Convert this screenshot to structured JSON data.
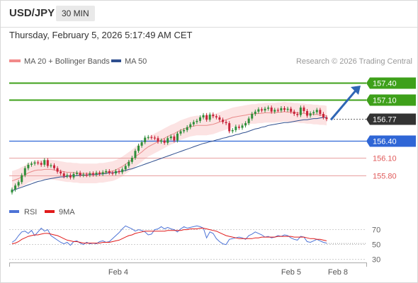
{
  "header": {
    "symbol": "USD/JPY",
    "timeframe": "30 MIN"
  },
  "timestamp": "Thursday, February 5, 2026 5:17:49 AM CET",
  "legend": {
    "ma20": "MA 20 + Bollinger Bands",
    "ma50": "MA 50",
    "credit": "Research © 2026 Trading Central"
  },
  "colors": {
    "support_line": "#2f66d6",
    "target_line": "#3ea01a",
    "pivot_line": "#e8a0a0",
    "price_box": "#333333",
    "arrow": "#2f66b5",
    "ma20": "#e98a8a",
    "ma50": "#2f4f8f",
    "rsi": "#4d73d6",
    "rsi_ma": "#e11b1b",
    "candle_up": "#2f8f3a",
    "candle_down": "#c8243a",
    "band_fill": "#fbd9d9"
  },
  "chart_data": [
    {
      "type": "candlestick",
      "title": "USD/JPY",
      "x_labels": [
        "Feb 4",
        "Feb 5",
        "Feb 8"
      ],
      "ylim": [
        155.39,
        157.62
      ],
      "levels": [
        {
          "value": 157.4,
          "label": "157.40",
          "kind": "target"
        },
        {
          "value": 157.1,
          "label": "157.10",
          "kind": "target"
        },
        {
          "value": 156.77,
          "label": "156.77",
          "kind": "last"
        },
        {
          "value": 156.4,
          "label": "156.40",
          "kind": "support"
        },
        {
          "value": 156.1,
          "label": "156.10",
          "kind": "pivot"
        },
        {
          "value": 155.8,
          "label": "155.80",
          "kind": "pivot"
        }
      ],
      "series": [
        {
          "name": "MA 20 + Bollinger Bands"
        },
        {
          "name": "MA 50"
        }
      ],
      "closes": [
        155.55,
        155.62,
        155.68,
        155.8,
        155.92,
        155.98,
        156.0,
        156.02,
        156.01,
        155.98,
        156.06,
        155.96,
        155.97,
        155.92,
        155.86,
        155.83,
        155.78,
        155.8,
        155.76,
        155.82,
        155.84,
        155.8,
        155.81,
        155.8,
        155.83,
        155.81,
        155.84,
        155.82,
        155.85,
        155.87,
        155.84,
        155.83,
        155.87,
        155.85,
        155.9,
        155.96,
        156.03,
        156.1,
        156.22,
        156.31,
        156.37,
        156.45,
        156.46,
        156.45,
        156.44,
        156.38,
        156.4,
        156.36,
        156.44,
        156.47,
        156.4,
        156.52,
        156.56,
        156.58,
        156.63,
        156.68,
        156.72,
        156.74,
        156.8,
        156.84,
        156.76,
        156.85,
        156.82,
        156.8,
        156.76,
        156.72,
        156.7,
        156.56,
        156.58,
        156.64,
        156.62,
        156.66,
        156.7,
        156.78,
        156.86,
        156.9,
        156.94,
        156.92,
        156.95,
        156.97,
        156.9,
        156.93,
        156.92,
        156.96,
        156.93,
        156.95,
        156.9,
        156.86,
        156.84,
        156.97,
        156.91,
        156.83,
        156.87,
        156.89,
        156.93,
        156.86,
        156.8,
        156.77
      ],
      "ma20": [
        155.7,
        155.72,
        155.74,
        155.77,
        155.8,
        155.84,
        155.86,
        155.88,
        155.89,
        155.89,
        155.9,
        155.9,
        155.9,
        155.89,
        155.88,
        155.87,
        155.86,
        155.85,
        155.85,
        155.84,
        155.84,
        155.83,
        155.83,
        155.83,
        155.83,
        155.83,
        155.83,
        155.84,
        155.84,
        155.85,
        155.86,
        155.87,
        155.89,
        155.92,
        155.95,
        155.99,
        156.03,
        156.07,
        156.12,
        156.16,
        156.2,
        156.25,
        156.29,
        156.32,
        156.35,
        156.38,
        156.41,
        156.44,
        156.47,
        156.5,
        156.52,
        156.55,
        156.58,
        156.6,
        156.62,
        156.64,
        156.65,
        156.66,
        156.66,
        156.66,
        156.66,
        156.67,
        156.68,
        156.7,
        156.72,
        156.74,
        156.76,
        156.78,
        156.8,
        156.81,
        156.82,
        156.83,
        156.84,
        156.85,
        156.86,
        156.86,
        156.87,
        156.87,
        156.88,
        156.88,
        156.88,
        156.88,
        156.89,
        156.89,
        156.9,
        156.89,
        156.89,
        156.88,
        156.88,
        156.87,
        156.87,
        156.86,
        156.86,
        156.85,
        156.85,
        156.84,
        156.84,
        156.83
      ],
      "ma50": [
        155.53,
        155.55,
        155.57,
        155.59,
        155.61,
        155.63,
        155.65,
        155.67,
        155.69,
        155.7,
        155.72,
        155.73,
        155.74,
        155.75,
        155.76,
        155.77,
        155.77,
        155.78,
        155.79,
        155.79,
        155.79,
        155.8,
        155.8,
        155.8,
        155.81,
        155.81,
        155.81,
        155.82,
        155.82,
        155.83,
        155.84,
        155.84,
        155.85,
        155.86,
        155.87,
        155.88,
        155.9,
        155.91,
        155.93,
        155.95,
        155.97,
        155.99,
        156.01,
        156.03,
        156.05,
        156.07,
        156.09,
        156.11,
        156.13,
        156.15,
        156.17,
        156.19,
        156.21,
        156.23,
        156.25,
        156.27,
        156.29,
        156.31,
        156.33,
        156.35,
        156.36,
        156.38,
        156.39,
        156.41,
        156.42,
        156.44,
        156.45,
        156.47,
        156.48,
        156.5,
        156.51,
        156.53,
        156.54,
        156.56,
        156.58,
        156.6,
        156.61,
        156.63,
        156.64,
        156.66,
        156.67,
        156.68,
        156.69,
        156.7,
        156.71,
        156.71,
        156.72,
        156.73,
        156.74,
        156.75,
        156.76,
        156.76,
        156.77,
        156.78,
        156.78,
        156.79,
        156.8,
        156.8
      ],
      "bollinger_width": 0.17
    },
    {
      "type": "line",
      "title": "RSI",
      "series": [
        {
          "name": "RSI"
        },
        {
          "name": "9MA"
        }
      ],
      "ylim": [
        25,
        80
      ],
      "yticks": [
        70,
        50,
        30
      ],
      "x_labels": [
        "Feb 4",
        "Feb 5",
        "Feb 8"
      ],
      "rsi": [
        52,
        55,
        61,
        66,
        67,
        64,
        68,
        61,
        66,
        71,
        67,
        69,
        61,
        58,
        55,
        52,
        50,
        52,
        48,
        53,
        54,
        51,
        49,
        52,
        50,
        51,
        50,
        53,
        54,
        52,
        53,
        57,
        61,
        65,
        70,
        74,
        72,
        70,
        67,
        69,
        68,
        66,
        62,
        63,
        69,
        70,
        73,
        70,
        72,
        70,
        69,
        66,
        70,
        73,
        71,
        72,
        73,
        74,
        73,
        71,
        58,
        66,
        64,
        57,
        53,
        50,
        49,
        56,
        57,
        58,
        59,
        58,
        56,
        61,
        63,
        66,
        64,
        62,
        59,
        60,
        58,
        59,
        61,
        60,
        62,
        61,
        58,
        56,
        55,
        60,
        59,
        53,
        52,
        54,
        56,
        54,
        52,
        51
      ],
      "rsi_ma": [
        50,
        51,
        53,
        56,
        58,
        60,
        61,
        62,
        62,
        63,
        64,
        64,
        63,
        62,
        61,
        59,
        57,
        55,
        54,
        53,
        53,
        52,
        51,
        51,
        51,
        51,
        51,
        51,
        52,
        52,
        52,
        53,
        54,
        55,
        57,
        59,
        61,
        62,
        64,
        65,
        66,
        67,
        67,
        67,
        67,
        67,
        67,
        67,
        68,
        68,
        68,
        68,
        68,
        69,
        69,
        70,
        70,
        70,
        71,
        71,
        70,
        69,
        68,
        67,
        65,
        63,
        61,
        60,
        59,
        58,
        57,
        57,
        57,
        57,
        57,
        58,
        58,
        59,
        59,
        59,
        59,
        59,
        60,
        60,
        60,
        60,
        60,
        59,
        59,
        59,
        59,
        58,
        57,
        57,
        56,
        56,
        55,
        54
      ]
    }
  ]
}
